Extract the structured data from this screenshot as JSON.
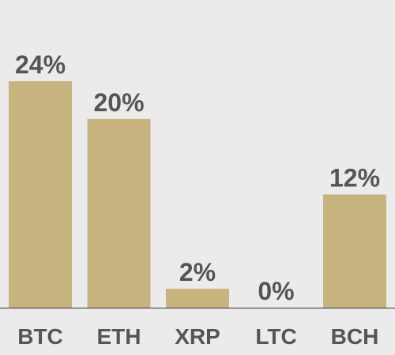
{
  "chart_data": {
    "type": "bar",
    "categories": [
      "BTC",
      "ETH",
      "XRP",
      "LTC",
      "BCH"
    ],
    "values": [
      24,
      20,
      2,
      0,
      12
    ],
    "value_labels": [
      "24%",
      "20%",
      "2%",
      "0%",
      "12%"
    ],
    "color": "#c8b47f"
  }
}
